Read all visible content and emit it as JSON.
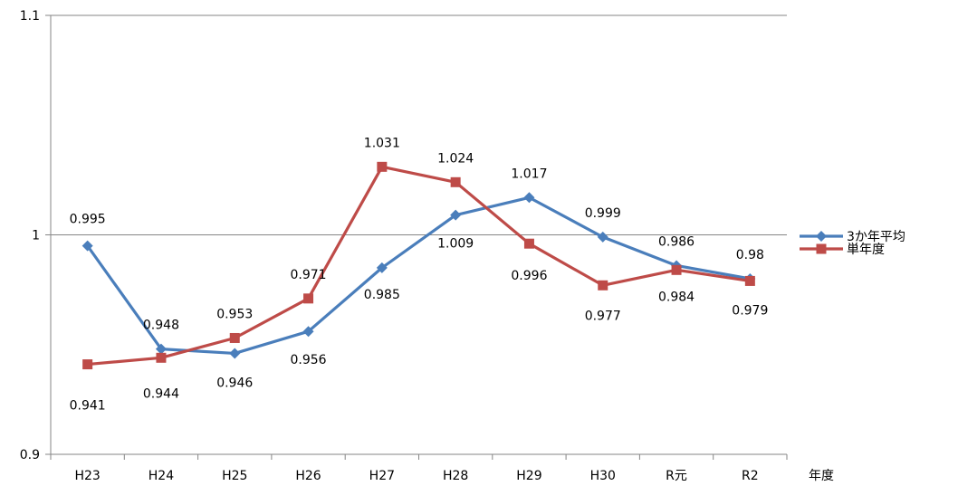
{
  "chart_data": {
    "type": "line",
    "title": "",
    "xlabel": "年度",
    "ylabel": "",
    "ylim": [
      0.9,
      1.1
    ],
    "y_ticks": [
      "0.9",
      "1",
      "1.1"
    ],
    "categories": [
      "H23",
      "H24",
      "H25",
      "H26",
      "H27",
      "H28",
      "H29",
      "H30",
      "R元",
      "R2"
    ],
    "grid": "horizontal",
    "legend_position": "right",
    "series": [
      {
        "name": "3か年平均",
        "color": "#4a7ebb",
        "marker": "diamond",
        "values": [
          0.995,
          0.948,
          0.946,
          0.956,
          0.985,
          1.009,
          1.017,
          0.999,
          0.986,
          0.98
        ],
        "labels": [
          "0.995",
          "0.948",
          "0.946",
          "0.956",
          "0.985",
          "1.009",
          "1.017",
          "0.999",
          "0.986",
          "0.98"
        ]
      },
      {
        "name": "単年度",
        "color": "#be4b48",
        "marker": "square",
        "values": [
          0.941,
          0.944,
          0.953,
          0.971,
          1.031,
          1.024,
          0.996,
          0.977,
          0.984,
          0.979
        ],
        "labels": [
          "0.941",
          "0.944",
          "0.953",
          "0.971",
          "1.031",
          "1.024",
          "0.996",
          "0.977",
          "0.984",
          "0.979"
        ]
      }
    ]
  }
}
